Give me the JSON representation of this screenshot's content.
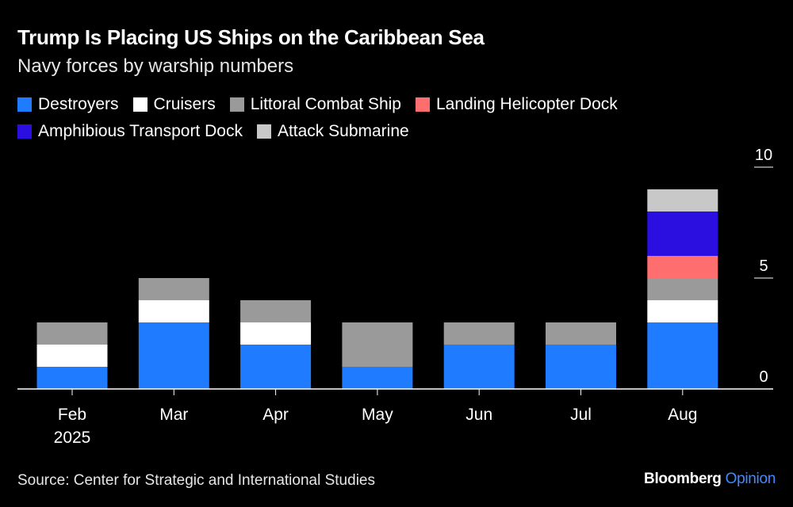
{
  "chart_data": {
    "type": "bar",
    "stacked": true,
    "title": "Trump Is Placing US Ships on the Caribbean Sea",
    "subtitle": "Navy forces by warship numbers",
    "categories": [
      "Feb",
      "Mar",
      "Apr",
      "May",
      "Jun",
      "Jul",
      "Aug"
    ],
    "category_sublabels": [
      "2025",
      "",
      "",
      "",
      "",
      "",
      ""
    ],
    "series": [
      {
        "name": "Destroyers",
        "color": "#1f7bff",
        "values": [
          1,
          3,
          2,
          1,
          2,
          2,
          3
        ]
      },
      {
        "name": "Cruisers",
        "color": "#ffffff",
        "values": [
          1,
          1,
          1,
          0,
          0,
          0,
          1
        ]
      },
      {
        "name": "Littoral Combat Ship",
        "color": "#9a9a9a",
        "values": [
          1,
          1,
          1,
          2,
          1,
          1,
          1
        ]
      },
      {
        "name": "Landing Helicopter Dock",
        "color": "#ff6e6e",
        "values": [
          0,
          0,
          0,
          0,
          0,
          0,
          1
        ]
      },
      {
        "name": "Amphibious Transport Dock",
        "color": "#2a0fe0",
        "values": [
          0,
          0,
          0,
          0,
          0,
          0,
          2
        ]
      },
      {
        "name": "Attack Submarine",
        "color": "#c8c8c8",
        "values": [
          0,
          0,
          0,
          0,
          0,
          0,
          1
        ]
      }
    ],
    "y_ticks": [
      0,
      5,
      10
    ],
    "ylim": [
      0,
      10
    ],
    "xlabel": "",
    "ylabel": ""
  },
  "footer": {
    "source": "Source: Center for Strategic and International Studies",
    "brand": "Bloomberg",
    "brand_suffix": "Opinion"
  }
}
